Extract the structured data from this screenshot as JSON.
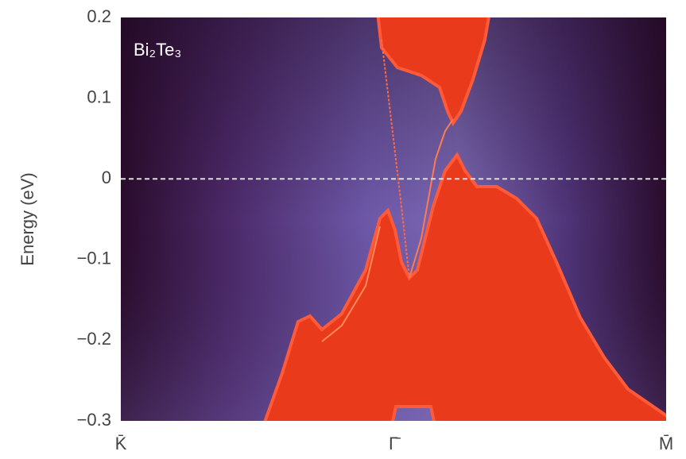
{
  "chart_data": {
    "type": "band-structure",
    "ylabel": "Energy (eV)",
    "annotation": "Bi₂Te₃",
    "categories": [
      "K̄",
      "Γ̄",
      "M̄"
    ],
    "ylim": [
      -0.3,
      0.2
    ],
    "yticks": [
      {
        "value": -0.3,
        "label": "−0.3"
      },
      {
        "value": -0.2,
        "label": "−0.2"
      },
      {
        "value": -0.1,
        "label": "−0.1"
      },
      0,
      0.1,
      0.2
    ],
    "hline": 0,
    "grid": false
  }
}
